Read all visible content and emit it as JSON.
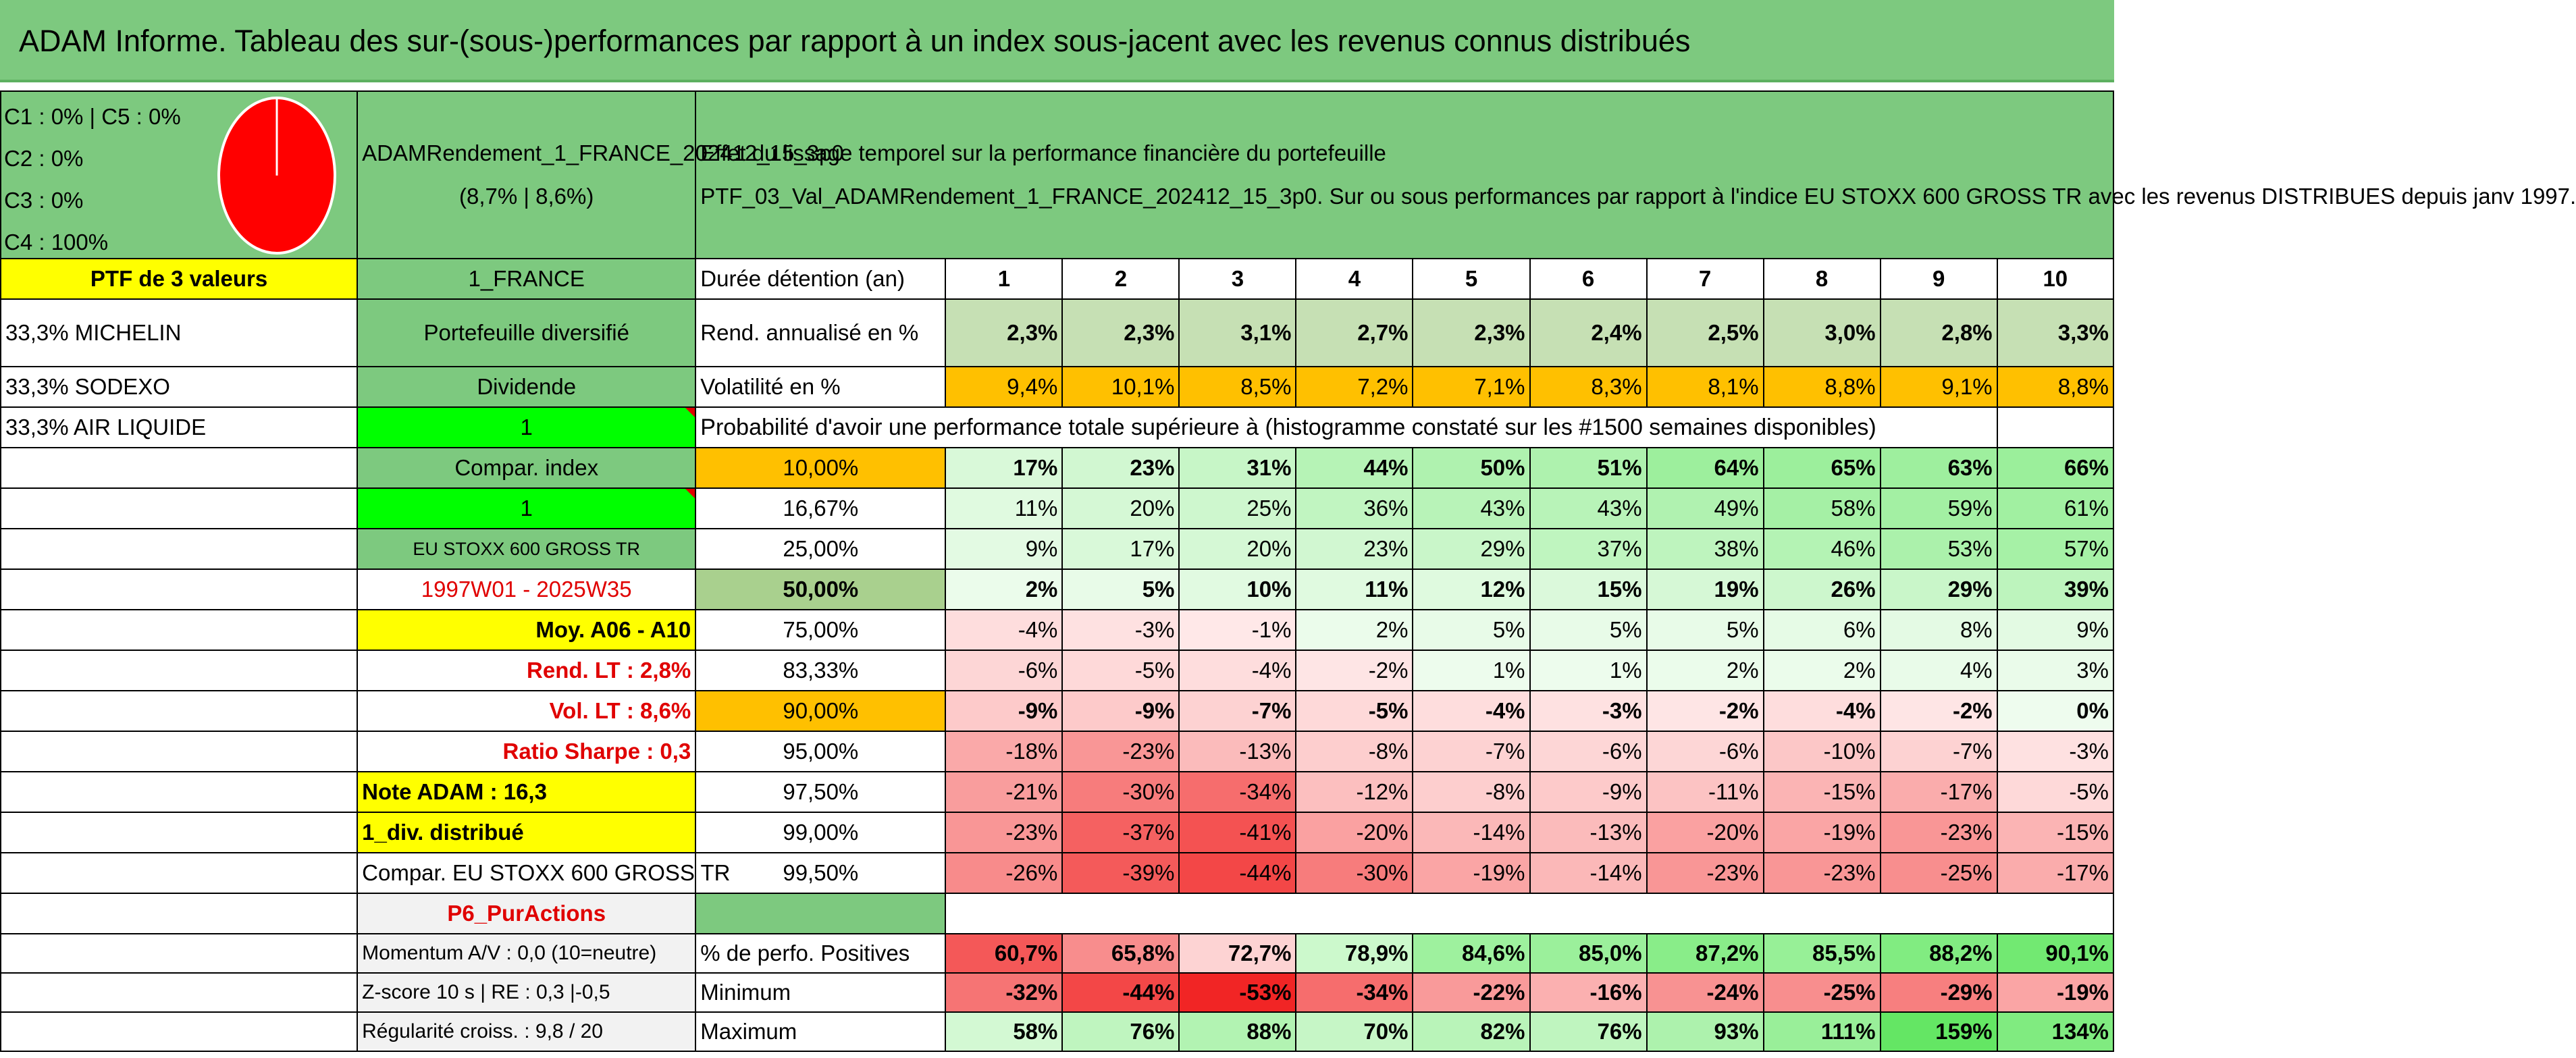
{
  "title": "ADAM Informe. Tableau des sur-(sous-)performances par rapport à un index sous-jacent avec les revenus connus distribués",
  "composition": [
    "C1 : 0% | C5 : 0%",
    "C2 : 0%",
    "C3 : 0%",
    "C4 : 100%"
  ],
  "pie": {
    "values": [
      0,
      0,
      0,
      100,
      0
    ],
    "color": "#ff0000"
  },
  "portfolio_name": "ADAMRendement_1_FRANCE_202412_15_3p0",
  "portfolio_perf": "(8,7% | 8,6%)",
  "description_1": "Effet du lissage temporel sur la performance financière du portefeuille",
  "description_2": "PTF_03_Val_ADAMRendement_1_FRANCE_202412_15_3p0. Sur ou sous performances par rapport à l'indice EU STOXX 600 GROSS TR avec les revenus DISTRIBUES depuis janv 1997.",
  "left": {
    "ptf_label": "PTF de 3 valeurs",
    "holdings": [
      "33,3% MICHELIN",
      "33,3% SODEXO",
      "33,3% AIR LIQUIDE"
    ]
  },
  "mid": {
    "country": "1_FRANCE",
    "type": "Portefeuille diversifié",
    "dividend": "Dividende",
    "dividend_val": "1",
    "compar": "Compar. index",
    "compar_val": "1",
    "index_name": "EU STOXX 600 GROSS TR",
    "period": "1997W01 - 2025W35",
    "moy": "Moy. A06 - A10",
    "rend_lt": "Rend. LT : 2,8%",
    "vol_lt": "Vol. LT : 8,6%",
    "sharpe": "Ratio Sharpe : 0,3",
    "note": "Note ADAM : 16,3",
    "div": "1_div. distribué",
    "compar_full": "Compar. EU STOXX 600 GROSS TR",
    "p6": "P6_PurActions",
    "momentum": "Momentum A/V : 0,0 (10=neutre)",
    "zscore": "Z-score 10 s | RE : 0,3 |-0,5",
    "regularite": "Régularité croiss. : 9,8 / 20"
  },
  "stats": {
    "duree_label": "Durée détention (an)",
    "years": [
      "1",
      "2",
      "3",
      "4",
      "5",
      "6",
      "7",
      "8",
      "9",
      "10"
    ],
    "rend_label": "Rend. annualisé en %",
    "rend": [
      "2,3%",
      "2,3%",
      "3,1%",
      "2,7%",
      "2,3%",
      "2,4%",
      "2,5%",
      "3,0%",
      "2,8%",
      "3,3%"
    ],
    "vol_label": "Volatilité en %",
    "vol": [
      "9,4%",
      "10,1%",
      "8,5%",
      "7,2%",
      "7,1%",
      "8,3%",
      "8,1%",
      "8,8%",
      "9,1%",
      "8,8%"
    ],
    "prob_label": "Probabilité d'avoir une performance totale supérieure à (histogramme constaté sur les #1500 semaines disponibles)",
    "pos_label": "% de perfo. Positives",
    "pos": [
      "60,7%",
      "65,8%",
      "72,7%",
      "78,9%",
      "84,6%",
      "85,0%",
      "87,2%",
      "85,5%",
      "88,2%",
      "90,1%"
    ],
    "pos_v": [
      60.7,
      65.8,
      72.7,
      78.9,
      84.6,
      85.0,
      87.2,
      85.5,
      88.2,
      90.1
    ],
    "min_label": "Minimum",
    "min": [
      "-32%",
      "-44%",
      "-53%",
      "-34%",
      "-22%",
      "-16%",
      "-24%",
      "-25%",
      "-29%",
      "-19%"
    ],
    "min_v": [
      -32,
      -44,
      -53,
      -34,
      -22,
      -16,
      -24,
      -25,
      -29,
      -19
    ],
    "max_label": "Maximum",
    "max": [
      "58%",
      "76%",
      "88%",
      "70%",
      "82%",
      "76%",
      "93%",
      "111%",
      "159%",
      "134%"
    ],
    "max_v": [
      58,
      76,
      88,
      70,
      82,
      76,
      93,
      111,
      159,
      134
    ]
  },
  "quantiles": [
    {
      "label": "10,00%",
      "vals": [
        "17%",
        "23%",
        "31%",
        "44%",
        "50%",
        "51%",
        "64%",
        "65%",
        "63%",
        "66%"
      ],
      "v": [
        17,
        23,
        31,
        44,
        50,
        51,
        64,
        65,
        63,
        66
      ]
    },
    {
      "label": "16,67%",
      "vals": [
        "11%",
        "20%",
        "25%",
        "36%",
        "43%",
        "43%",
        "49%",
        "58%",
        "59%",
        "61%"
      ],
      "v": [
        11,
        20,
        25,
        36,
        43,
        43,
        49,
        58,
        59,
        61
      ]
    },
    {
      "label": "25,00%",
      "vals": [
        "9%",
        "17%",
        "20%",
        "23%",
        "29%",
        "37%",
        "38%",
        "46%",
        "53%",
        "57%"
      ],
      "v": [
        9,
        17,
        20,
        23,
        29,
        37,
        38,
        46,
        53,
        57
      ]
    },
    {
      "label": "50,00%",
      "vals": [
        "2%",
        "5%",
        "10%",
        "11%",
        "12%",
        "15%",
        "19%",
        "26%",
        "29%",
        "39%"
      ],
      "v": [
        2,
        5,
        10,
        11,
        12,
        15,
        19,
        26,
        29,
        39
      ]
    },
    {
      "label": "75,00%",
      "vals": [
        "-4%",
        "-3%",
        "-1%",
        "2%",
        "5%",
        "5%",
        "5%",
        "6%",
        "8%",
        "9%"
      ],
      "v": [
        -4,
        -3,
        -1,
        2,
        5,
        5,
        5,
        6,
        8,
        9
      ]
    },
    {
      "label": "83,33%",
      "vals": [
        "-6%",
        "-5%",
        "-4%",
        "-2%",
        "1%",
        "1%",
        "2%",
        "2%",
        "4%",
        "3%"
      ],
      "v": [
        -6,
        -5,
        -4,
        -2,
        1,
        1,
        2,
        2,
        4,
        3
      ]
    },
    {
      "label": "90,00%",
      "vals": [
        "-9%",
        "-9%",
        "-7%",
        "-5%",
        "-4%",
        "-3%",
        "-2%",
        "-4%",
        "-2%",
        "0%"
      ],
      "v": [
        -9,
        -9,
        -7,
        -5,
        -4,
        -3,
        -2,
        -4,
        -2,
        0
      ]
    },
    {
      "label": "95,00%",
      "vals": [
        "-18%",
        "-23%",
        "-13%",
        "-8%",
        "-7%",
        "-6%",
        "-6%",
        "-10%",
        "-7%",
        "-3%"
      ],
      "v": [
        -18,
        -23,
        -13,
        -8,
        -7,
        -6,
        -6,
        -10,
        -7,
        -3
      ]
    },
    {
      "label": "97,50%",
      "vals": [
        "-21%",
        "-30%",
        "-34%",
        "-12%",
        "-8%",
        "-9%",
        "-11%",
        "-15%",
        "-17%",
        "-5%"
      ],
      "v": [
        -21,
        -30,
        -34,
        -12,
        -8,
        -9,
        -11,
        -15,
        -17,
        -5
      ]
    },
    {
      "label": "99,00%",
      "vals": [
        "-23%",
        "-37%",
        "-41%",
        "-20%",
        "-14%",
        "-13%",
        "-20%",
        "-19%",
        "-23%",
        "-15%"
      ],
      "v": [
        -23,
        -37,
        -41,
        -20,
        -14,
        -13,
        -20,
        -19,
        -23,
        -15
      ]
    },
    {
      "label": "99,50%",
      "vals": [
        "-26%",
        "-39%",
        "-44%",
        "-30%",
        "-19%",
        "-14%",
        "-23%",
        "-23%",
        "-25%",
        "-17%"
      ],
      "v": [
        -26,
        -39,
        -44,
        -30,
        -19,
        -14,
        -23,
        -23,
        -25,
        -17
      ]
    }
  ]
}
